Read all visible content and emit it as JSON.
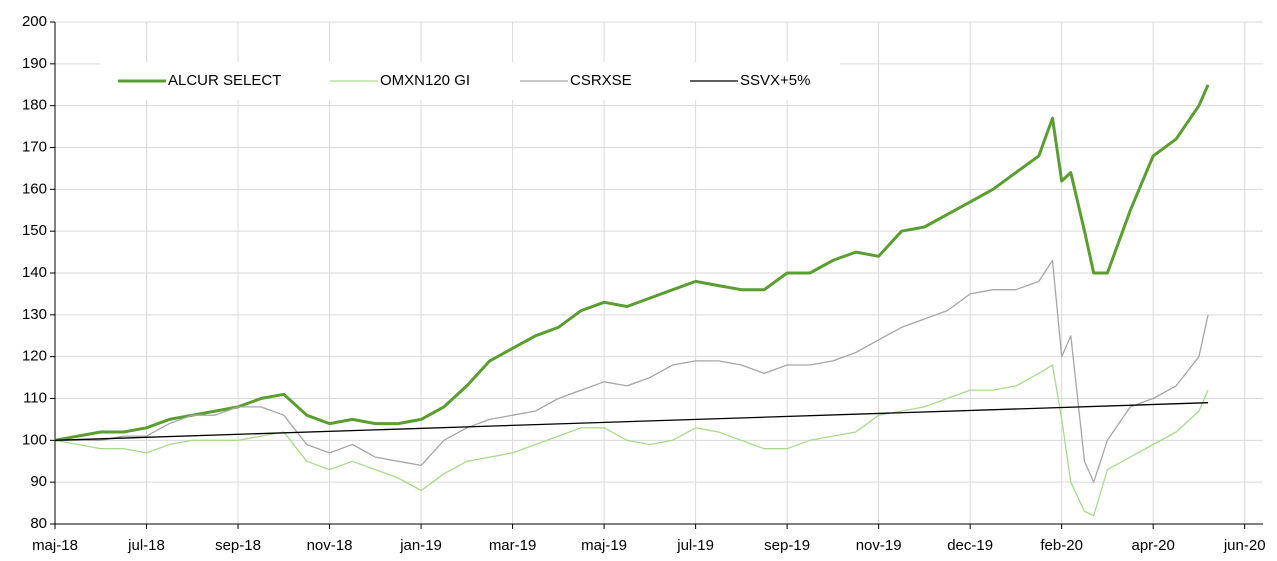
{
  "chart_data": {
    "type": "line",
    "x": [
      0,
      0.25,
      0.5,
      0.75,
      1,
      1.25,
      1.5,
      1.75,
      2,
      2.25,
      2.5,
      2.75,
      3,
      3.25,
      3.5,
      3.75,
      4,
      4.25,
      4.5,
      4.75,
      5,
      5.25,
      5.5,
      5.75,
      6,
      6.25,
      6.5,
      6.75,
      7,
      7.25,
      7.5,
      7.75,
      8,
      8.25,
      8.5,
      8.75,
      9,
      9.25,
      9.5,
      9.75,
      10,
      10.25,
      10.5,
      10.75,
      10.9,
      11,
      11.1,
      11.25,
      11.35,
      11.5,
      11.75,
      12,
      12.25,
      12.5,
      12.6
    ],
    "xlim": [
      0,
      13.2
    ],
    "xticks": [
      {
        "value": 0,
        "label": "maj-18"
      },
      {
        "value": 1,
        "label": "jul-18"
      },
      {
        "value": 2,
        "label": "sep-18"
      },
      {
        "value": 3,
        "label": "nov-18"
      },
      {
        "value": 4,
        "label": "jan-19"
      },
      {
        "value": 5,
        "label": "mar-19"
      },
      {
        "value": 6,
        "label": "maj-19"
      },
      {
        "value": 7,
        "label": "jul-19"
      },
      {
        "value": 8,
        "label": "sep-19"
      },
      {
        "value": 9,
        "label": "nov-19"
      },
      {
        "value": 10,
        "label": "dec-19"
      },
      {
        "value": 11,
        "label": "feb-20"
      },
      {
        "value": 12,
        "label": "apr-20"
      },
      {
        "value": 13,
        "label": "jun-20"
      }
    ],
    "ylim": [
      80,
      200
    ],
    "yticks": [
      80,
      90,
      100,
      110,
      120,
      130,
      140,
      150,
      160,
      170,
      180,
      190,
      200
    ],
    "grid": true,
    "legend": "top-left",
    "series": [
      {
        "name": "ALCUR SELECT",
        "color": "#5a9e2f",
        "values": [
          100,
          101,
          102,
          102,
          103,
          105,
          106,
          107,
          108,
          110,
          111,
          106,
          104,
          105,
          104,
          104,
          105,
          108,
          113,
          119,
          122,
          125,
          127,
          131,
          133,
          132,
          134,
          136,
          138,
          137,
          136,
          136,
          140,
          140,
          143,
          145,
          144,
          150,
          151,
          154,
          157,
          160,
          164,
          168,
          177,
          162,
          164,
          150,
          140,
          140,
          155,
          168,
          172,
          180,
          185
        ]
      },
      {
        "name": "OMXN120 GI",
        "color": "#a8db8a",
        "values": [
          100,
          99,
          98,
          98,
          97,
          99,
          100,
          100,
          100,
          101,
          102,
          95,
          93,
          95,
          93,
          91,
          88,
          92,
          95,
          96,
          97,
          99,
          101,
          103,
          103,
          100,
          99,
          100,
          103,
          102,
          100,
          98,
          98,
          100,
          101,
          102,
          106,
          107,
          108,
          110,
          112,
          112,
          113,
          116,
          118,
          105,
          90,
          83,
          82,
          93,
          96,
          99,
          102,
          107,
          112
        ]
      },
      {
        "name": "CSRXSE",
        "color": "#a6a6a6",
        "values": [
          100,
          100,
          100,
          101,
          101,
          104,
          106,
          106,
          108,
          108,
          106,
          99,
          97,
          99,
          96,
          95,
          94,
          100,
          103,
          105,
          106,
          107,
          110,
          112,
          114,
          113,
          115,
          118,
          119,
          119,
          118,
          116,
          118,
          118,
          119,
          121,
          124,
          127,
          129,
          131,
          135,
          136,
          136,
          138,
          143,
          120,
          125,
          95,
          90,
          100,
          108,
          110,
          113,
          120,
          130
        ]
      },
      {
        "name": "SSVX+5%",
        "color": "#000000",
        "x": [
          0,
          12.6
        ],
        "values": [
          100,
          109
        ]
      }
    ]
  }
}
